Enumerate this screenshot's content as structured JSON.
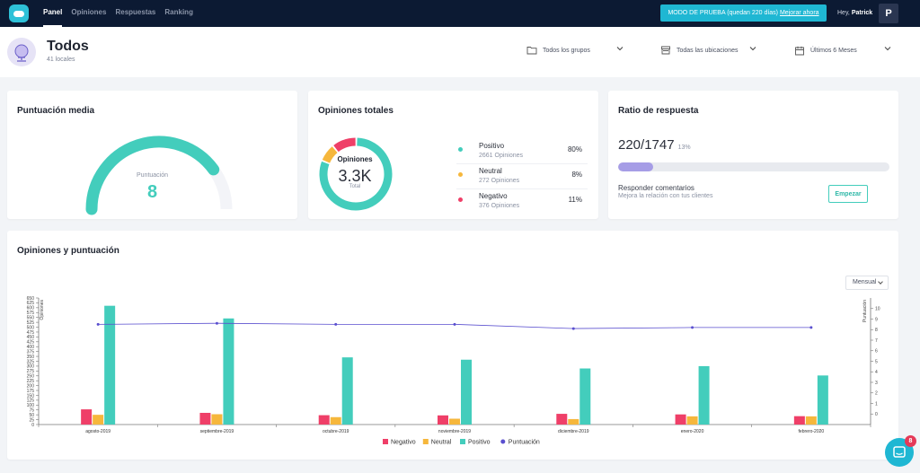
{
  "nav": {
    "tabs": [
      "Panel",
      "Opiniones",
      "Respuestas",
      "Ranking"
    ],
    "trial_text": "MODO DE PRUEBA (quedan 220 días)",
    "trial_link": "Mejorar ahora",
    "greeting": "Hey,",
    "user_name": "Patrick",
    "avatar_letter": "P"
  },
  "header": {
    "title": "Todos",
    "subtitle": "41 locales",
    "filters": [
      {
        "label": "Todos los grupos",
        "icon": "folder-icon"
      },
      {
        "label": "Todas las ubicaciones",
        "icon": "store-icon"
      },
      {
        "label": "Últimos 6 Meses",
        "icon": "calendar-icon"
      }
    ]
  },
  "score_card": {
    "title": "Puntuación media",
    "label": "Puntuación",
    "value": "8",
    "fraction": 0.8
  },
  "reviews_card": {
    "title": "Opiniones totales",
    "center_title": "Opiniones",
    "center_value": "3.3K",
    "center_sub": "Total",
    "items": [
      {
        "name": "Positivo",
        "count": "2661 Opiniones",
        "pct": "80%",
        "value": 80,
        "color": "#43cdbc"
      },
      {
        "name": "Neutral",
        "count": "272 Opiniones",
        "pct": "8%",
        "value": 8,
        "color": "#f6b73c"
      },
      {
        "name": "Negativo",
        "count": "376 Opiniones",
        "pct": "11%",
        "value": 11,
        "color": "#ef3f68"
      }
    ]
  },
  "ratio_card": {
    "title": "Ratio de respuesta",
    "value": "220/1747",
    "pct": "13%",
    "fraction": 0.13,
    "cta_title": "Responder comentarios",
    "cta_sub": "Mejora la relación con tus clientes",
    "button": "Empezar"
  },
  "chart_card": {
    "title": "Opiniones y puntuación",
    "period": "Mensual"
  },
  "chart_data": {
    "type": "bar",
    "categories": [
      "agosto-2019",
      "septiembre-2019",
      "octubre-2019",
      "noviembre-2019",
      "diciembre-2019",
      "enero-2020",
      "febrero-2020"
    ],
    "series": [
      {
        "name": "Negativo",
        "type": "bar",
        "axis": "left",
        "color": "#ef3f68",
        "values": [
          78,
          60,
          48,
          47,
          55,
          52,
          43
        ]
      },
      {
        "name": "Neutral",
        "type": "bar",
        "axis": "left",
        "color": "#f6b73c",
        "values": [
          50,
          53,
          38,
          30,
          28,
          42,
          42
        ]
      },
      {
        "name": "Positivo",
        "type": "bar",
        "axis": "left",
        "color": "#43cdbc",
        "values": [
          610,
          545,
          345,
          333,
          288,
          300,
          252
        ]
      },
      {
        "name": "Puntuación",
        "type": "line",
        "axis": "right",
        "color": "#5a4fcf",
        "values": [
          8.5,
          8.6,
          8.5,
          8.5,
          8.1,
          8.2,
          8.2
        ]
      }
    ],
    "ylabel": "Opiniones",
    "y2label": "Puntuación",
    "ylim": [
      0,
      650
    ],
    "yticks": [
      0,
      25,
      50,
      75,
      100,
      125,
      150,
      175,
      200,
      225,
      250,
      275,
      300,
      325,
      350,
      375,
      400,
      425,
      450,
      475,
      500,
      525,
      550,
      575,
      600,
      625,
      650
    ],
    "y2lim": [
      -1,
      11
    ],
    "y2ticks": [
      0,
      1,
      2,
      3,
      4,
      5,
      6,
      7,
      8,
      9,
      10
    ],
    "legend": "bottom",
    "grid": false
  }
}
